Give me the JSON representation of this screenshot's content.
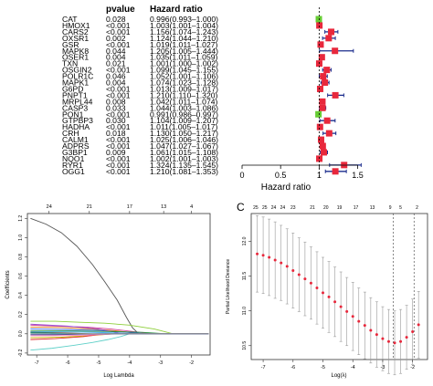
{
  "chart_data": [
    {
      "type": "forest",
      "headers": {
        "pvalue": "pvalue",
        "hr": "Hazard ratio"
      },
      "xlabel": "Hazard ratio",
      "xlim": [
        0,
        1.6
      ],
      "xticks": [
        0,
        0.5,
        1,
        1.5
      ],
      "reference_line": 1,
      "marker_colors": {
        "protective": "#66cc33",
        "risk": "#e8283c"
      },
      "line_color": "#1a2b8c",
      "rows": [
        {
          "gene": "CAT",
          "p": "0.028",
          "hr_text": "0.996(0.993–1.000)",
          "hr": 0.996,
          "lo": 0.993,
          "hi": 1.0
        },
        {
          "gene": "HMOX1",
          "p": "<0.001",
          "hr_text": "1.003(1.001–1.004)",
          "hr": 1.003,
          "lo": 1.001,
          "hi": 1.004
        },
        {
          "gene": "CARS2",
          "p": "<0.001",
          "hr_text": "1.156(1.074–1.243)",
          "hr": 1.156,
          "lo": 1.074,
          "hi": 1.243
        },
        {
          "gene": "OXSR1",
          "p": "0.002",
          "hr_text": "1.124(1.044–1.210)",
          "hr": 1.124,
          "lo": 1.044,
          "hi": 1.21
        },
        {
          "gene": "GSR",
          "p": "<0.001",
          "hr_text": "1.019(1.011–1.027)",
          "hr": 1.019,
          "lo": 1.011,
          "hi": 1.027
        },
        {
          "gene": "MAPK8",
          "p": "0.044",
          "hr_text": "1.205(1.005–1.444)",
          "hr": 1.205,
          "lo": 1.005,
          "hi": 1.444
        },
        {
          "gene": "OSER1",
          "p": "0.004",
          "hr_text": "1.035(1.011–1.059)",
          "hr": 1.035,
          "lo": 1.011,
          "hi": 1.059
        },
        {
          "gene": "TXN",
          "p": "0.021",
          "hr_text": "1.001(1.000–1.002)",
          "hr": 1.001,
          "lo": 1.0,
          "hi": 1.002
        },
        {
          "gene": "OSGIN2",
          "p": "<0.001",
          "hr_text": "1.099(1.045–1.155)",
          "hr": 1.099,
          "lo": 1.045,
          "hi": 1.155
        },
        {
          "gene": "POLR1C",
          "p": "0.046",
          "hr_text": "1.052(1.001–1.106)",
          "hr": 1.052,
          "lo": 1.001,
          "hi": 1.106
        },
        {
          "gene": "MAPK1",
          "p": "0.004",
          "hr_text": "1.074(1.023–1.128)",
          "hr": 1.074,
          "lo": 1.023,
          "hi": 1.128
        },
        {
          "gene": "G6PD",
          "p": "<0.001",
          "hr_text": "1.013(1.009–1.017)",
          "hr": 1.013,
          "lo": 1.009,
          "hi": 1.017
        },
        {
          "gene": "PNPT1",
          "p": "<0.001",
          "hr_text": "1.210(1.110–1.320)",
          "hr": 1.21,
          "lo": 1.11,
          "hi": 1.32
        },
        {
          "gene": "MRPL44",
          "p": "0.008",
          "hr_text": "1.042(1.011–1.074)",
          "hr": 1.042,
          "lo": 1.011,
          "hi": 1.074
        },
        {
          "gene": "CASP3",
          "p": "0.033",
          "hr_text": "1.044(1.003–1.086)",
          "hr": 1.044,
          "lo": 1.003,
          "hi": 1.086
        },
        {
          "gene": "PON1",
          "p": "<0.001",
          "hr_text": "0.991(0.986–0.997)",
          "hr": 0.991,
          "lo": 0.986,
          "hi": 0.997
        },
        {
          "gene": "GTPBP3",
          "p": "0.030",
          "hr_text": "1.104(1.009–1.207)",
          "hr": 1.104,
          "lo": 1.009,
          "hi": 1.207
        },
        {
          "gene": "HADHA",
          "p": "<0.001",
          "hr_text": "1.011(1.005–1.017)",
          "hr": 1.011,
          "lo": 1.005,
          "hi": 1.017
        },
        {
          "gene": "CRH",
          "p": "0.018",
          "hr_text": "1.130(1.050–1.217)",
          "hr": 1.13,
          "lo": 1.05,
          "hi": 1.217
        },
        {
          "gene": "CALM1",
          "p": "<0.001",
          "hr_text": "1.025(1.006–1.046)",
          "hr": 1.025,
          "lo": 1.006,
          "hi": 1.046
        },
        {
          "gene": "ADPRS",
          "p": "<0.001",
          "hr_text": "1.047(1.027–1.067)",
          "hr": 1.047,
          "lo": 1.027,
          "hi": 1.067
        },
        {
          "gene": "G3BP1",
          "p": "0.009",
          "hr_text": "1.061(1.015–1.108)",
          "hr": 1.061,
          "lo": 1.015,
          "hi": 1.108
        },
        {
          "gene": "NQO1",
          "p": "<0.001",
          "hr_text": "1.002(1.001–1.003)",
          "hr": 1.002,
          "lo": 1.001,
          "hi": 1.003
        },
        {
          "gene": "RYR1",
          "p": "<0.001",
          "hr_text": "1.324(1.135–1.545)",
          "hr": 1.324,
          "lo": 1.135,
          "hi": 1.545
        },
        {
          "gene": "OGG1",
          "p": "<0.001",
          "hr_text": "1.210(1.081–1.353)",
          "hr": 1.21,
          "lo": 1.081,
          "hi": 1.353
        }
      ]
    },
    {
      "type": "line",
      "xlabel": "Log Lambda",
      "ylabel": "Coefficients",
      "xlim": [
        -7.3,
        -1.4
      ],
      "ylim": [
        -0.22,
        1.25
      ],
      "xticks": [
        -7,
        -6,
        -5,
        -4,
        -3,
        -2
      ],
      "yticks": [
        -0.2,
        0.0,
        0.2,
        0.4,
        0.6,
        0.8,
        1.0,
        1.2
      ],
      "top_axis": [
        {
          "x": -6.6,
          "label": "24"
        },
        {
          "x": -5.3,
          "label": "21"
        },
        {
          "x": -4.0,
          "label": "17"
        },
        {
          "x": -2.9,
          "label": "13"
        },
        {
          "x": -2.0,
          "label": "4"
        }
      ],
      "series": [
        {
          "color": "#555555",
          "x": [
            -7.2,
            -6.7,
            -6.2,
            -5.7,
            -5.2,
            -4.8,
            -4.4,
            -4.1,
            -3.9,
            -3.7
          ],
          "y": [
            1.2,
            1.14,
            1.05,
            0.91,
            0.72,
            0.54,
            0.35,
            0.17,
            0.06,
            0.0
          ]
        },
        {
          "color": "#5fd0c8",
          "x": [
            -7.2,
            -6.5,
            -5.8,
            -5.2,
            -4.7,
            -4.3,
            -4.0
          ],
          "y": [
            -0.17,
            -0.15,
            -0.12,
            -0.09,
            -0.06,
            -0.03,
            0.0
          ]
        },
        {
          "color": "#8ecf3a",
          "x": [
            -7.2,
            -6.4,
            -5.6,
            -4.8,
            -4.0,
            -3.2,
            -2.6
          ],
          "y": [
            0.13,
            0.13,
            0.12,
            0.11,
            0.09,
            0.05,
            0.0
          ]
        },
        {
          "color": "#d23c96",
          "x": [
            -7.2,
            -6.3,
            -5.4,
            -4.6,
            -3.8,
            -3.3
          ],
          "y": [
            0.09,
            0.08,
            0.07,
            0.05,
            0.02,
            0.0
          ]
        },
        {
          "color": "#e07b1a",
          "x": [
            -7.2,
            -6.2,
            -5.2,
            -4.4,
            -3.6
          ],
          "y": [
            0.07,
            0.065,
            0.05,
            0.03,
            0.0
          ]
        },
        {
          "color": "#2a62d6",
          "x": [
            -7.2,
            -6.1,
            -5.0,
            -4.1,
            -3.4
          ],
          "y": [
            0.05,
            0.045,
            0.035,
            0.015,
            0.0
          ]
        },
        {
          "color": "#9a4fd0",
          "x": [
            -7.2,
            -6.0,
            -5.0,
            -4.2
          ],
          "y": [
            0.1,
            0.08,
            0.05,
            0.0
          ]
        },
        {
          "color": "#c8b400",
          "x": [
            -7.2,
            -6.2,
            -5.3,
            -4.5
          ],
          "y": [
            -0.04,
            -0.035,
            -0.02,
            0.0
          ]
        },
        {
          "color": "#1f8f3a",
          "x": [
            -7.2,
            -6.0,
            -4.8,
            -3.6,
            -2.8
          ],
          "y": [
            0.03,
            0.03,
            0.025,
            0.015,
            0.0
          ]
        },
        {
          "color": "#e03030",
          "x": [
            -7.2,
            -6.4,
            -5.5,
            -4.8
          ],
          "y": [
            -0.06,
            -0.05,
            -0.03,
            0.0
          ]
        },
        {
          "color": "#3fa9f5",
          "x": [
            -7.2,
            -6.3,
            -5.5,
            -4.6,
            -3.9
          ],
          "y": [
            0.02,
            0.02,
            0.018,
            0.01,
            0.0
          ]
        },
        {
          "color": "#7a3b1e",
          "x": [
            -7.2,
            -6.5,
            -5.8,
            -5.2
          ],
          "y": [
            0.015,
            0.012,
            0.006,
            0.0
          ]
        },
        {
          "color": "#ff7fbf",
          "x": [
            -7.2,
            -6.0,
            -5.0,
            -4.3
          ],
          "y": [
            -0.02,
            -0.018,
            -0.01,
            0.0
          ]
        },
        {
          "color": "#00a39a",
          "x": [
            -7.2,
            -6.6,
            -5.9
          ],
          "y": [
            0.01,
            0.008,
            0.0
          ]
        },
        {
          "color": "#333399",
          "x": [
            -7.2,
            -6.4,
            -5.7,
            -5.0
          ],
          "y": [
            -0.01,
            -0.009,
            -0.005,
            0.0
          ]
        },
        {
          "color": "#999999",
          "x": [
            -7.2,
            -6.0,
            -4.9,
            -4.1
          ],
          "y": [
            0.0,
            0.0,
            0.0,
            0.0
          ]
        }
      ]
    },
    {
      "type": "errorbar",
      "panel_label": "C",
      "xlabel": "Log(λ)",
      "ylabel": "Partial Likelihood Deviance",
      "xlim": [
        -7.4,
        -1.5
      ],
      "ylim": [
        10.3,
        12.4
      ],
      "xticks": [
        -7,
        -6,
        -5,
        -4,
        -3,
        -2
      ],
      "yticks": [
        10.5,
        11.0,
        11.5,
        12.0
      ],
      "vlines": [
        -2.65,
        -1.95
      ],
      "top_labels": [
        {
          "x": -7.25,
          "label": "25"
        },
        {
          "x": -6.95,
          "label": "25"
        },
        {
          "x": -6.65,
          "label": "24"
        },
        {
          "x": -6.35,
          "label": "24"
        },
        {
          "x": -6.0,
          "label": "23"
        },
        {
          "x": -5.35,
          "label": "21"
        },
        {
          "x": -4.9,
          "label": "20"
        },
        {
          "x": -4.45,
          "label": "19"
        },
        {
          "x": -3.9,
          "label": "17"
        },
        {
          "x": -3.35,
          "label": "13"
        },
        {
          "x": -2.75,
          "label": "9"
        },
        {
          "x": -2.4,
          "label": "5"
        },
        {
          "x": -1.85,
          "label": "2"
        }
      ],
      "x": [
        -7.2,
        -7.0,
        -6.8,
        -6.6,
        -6.4,
        -6.2,
        -6.0,
        -5.8,
        -5.6,
        -5.4,
        -5.2,
        -5.0,
        -4.8,
        -4.6,
        -4.4,
        -4.2,
        -4.0,
        -3.8,
        -3.6,
        -3.4,
        -3.2,
        -3.0,
        -2.8,
        -2.6,
        -2.4,
        -2.2,
        -2.0,
        -1.8
      ],
      "y": [
        11.82,
        11.8,
        11.77,
        11.73,
        11.69,
        11.64,
        11.58,
        11.52,
        11.46,
        11.4,
        11.33,
        11.26,
        11.2,
        11.13,
        11.06,
        10.99,
        10.92,
        10.85,
        10.79,
        10.72,
        10.66,
        10.6,
        10.56,
        10.54,
        10.56,
        10.62,
        10.7,
        10.8
      ],
      "err": [
        0.55,
        0.55,
        0.55,
        0.55,
        0.54,
        0.54,
        0.54,
        0.53,
        0.53,
        0.52,
        0.52,
        0.51,
        0.51,
        0.5,
        0.5,
        0.49,
        0.49,
        0.48,
        0.48,
        0.47,
        0.47,
        0.46,
        0.46,
        0.46,
        0.46,
        0.46,
        0.47,
        0.48
      ]
    }
  ]
}
